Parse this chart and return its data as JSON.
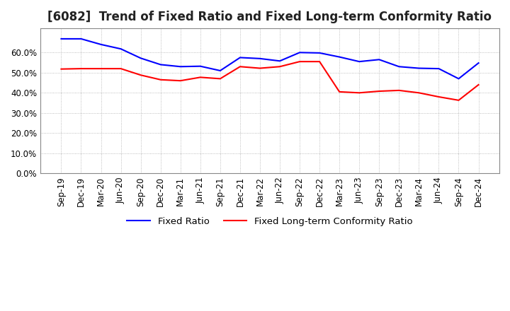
{
  "title": "[6082]  Trend of Fixed Ratio and Fixed Long-term Conformity Ratio",
  "x_labels": [
    "Sep-19",
    "Dec-19",
    "Mar-20",
    "Jun-20",
    "Sep-20",
    "Dec-20",
    "Mar-21",
    "Jun-21",
    "Sep-21",
    "Dec-21",
    "Mar-22",
    "Jun-22",
    "Sep-22",
    "Dec-22",
    "Mar-23",
    "Jun-23",
    "Sep-23",
    "Dec-23",
    "Mar-24",
    "Jun-24",
    "Sep-24",
    "Dec-24"
  ],
  "fixed_ratio": [
    0.668,
    0.668,
    0.64,
    0.618,
    0.572,
    0.54,
    0.53,
    0.532,
    0.51,
    0.575,
    0.57,
    0.558,
    0.6,
    0.598,
    0.578,
    0.555,
    0.565,
    0.53,
    0.522,
    0.52,
    0.47,
    0.548
  ],
  "fixed_lt_ratio": [
    0.518,
    0.52,
    0.52,
    0.52,
    0.488,
    0.465,
    0.46,
    0.477,
    0.47,
    0.53,
    0.522,
    0.53,
    0.555,
    0.555,
    0.405,
    0.4,
    0.408,
    0.412,
    0.4,
    0.38,
    0.363,
    0.44
  ],
  "fixed_ratio_color": "#0000ff",
  "fixed_lt_ratio_color": "#ff0000",
  "ylim": [
    0.0,
    0.72
  ],
  "yticks": [
    0.0,
    0.1,
    0.2,
    0.3,
    0.4,
    0.5,
    0.6
  ],
  "background_color": "#ffffff",
  "grid_color": "#aaaaaa",
  "legend_fixed_ratio": "Fixed Ratio",
  "legend_fixed_lt_ratio": "Fixed Long-term Conformity Ratio",
  "title_fontsize": 12,
  "tick_fontsize": 8.5
}
